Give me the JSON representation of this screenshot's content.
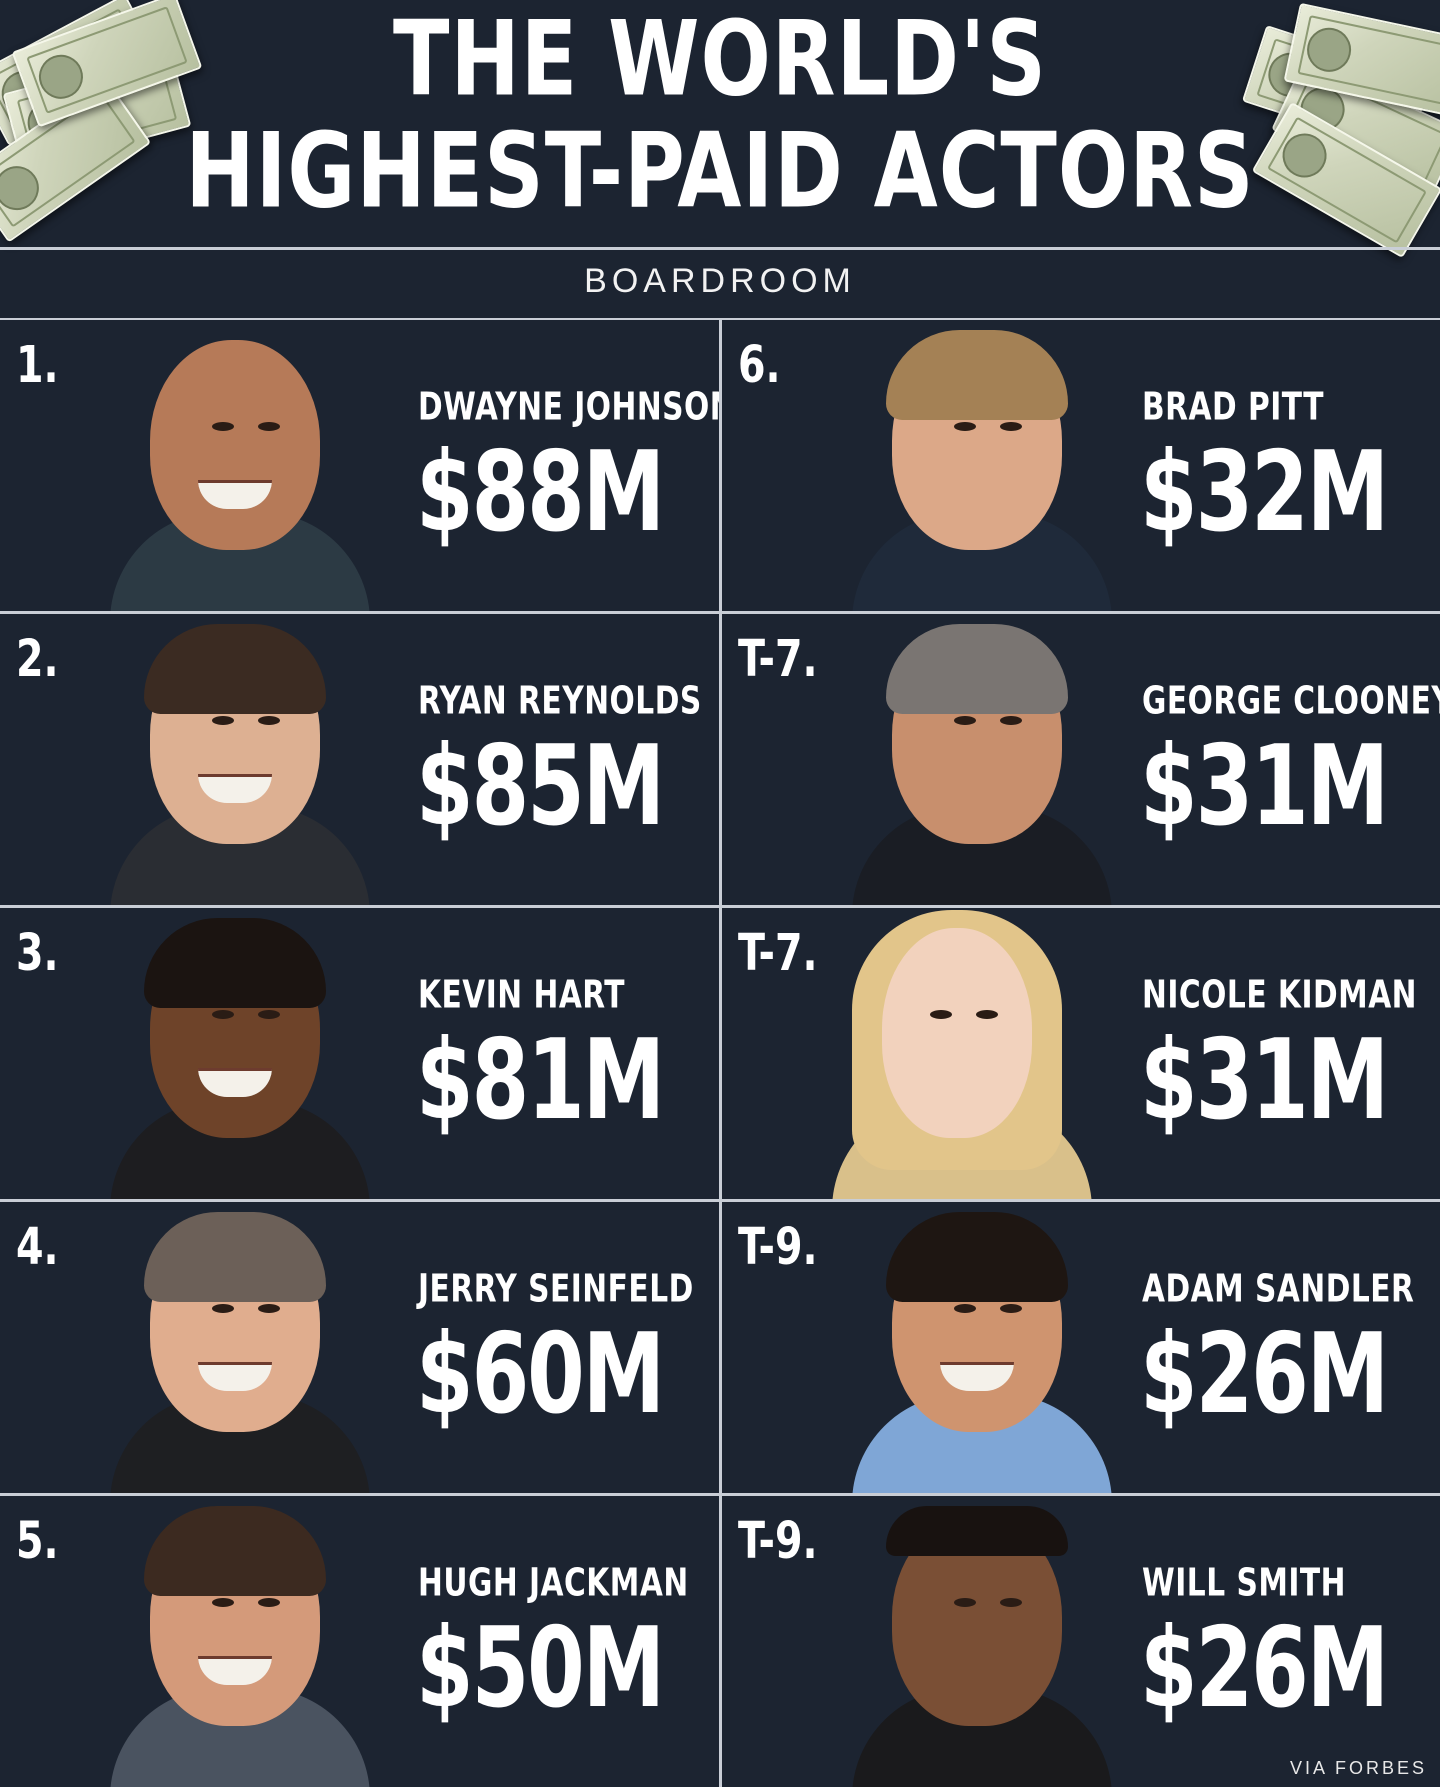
{
  "header": {
    "title_line1": "THE WORLD'S",
    "title_line2": "HIGHEST-PAID ACTORS",
    "brand": "BOARDROOM"
  },
  "actors_left": [
    {
      "rank": "1.",
      "name": "DWAYNE JOHNSON",
      "amount": "$88M"
    },
    {
      "rank": "2.",
      "name": "RYAN REYNOLDS",
      "amount": "$85M"
    },
    {
      "rank": "3.",
      "name": "KEVIN HART",
      "amount": "$81M"
    },
    {
      "rank": "4.",
      "name": "JERRY SEINFELD",
      "amount": "$60M"
    },
    {
      "rank": "5.",
      "name": "HUGH JACKMAN",
      "amount": "$50M"
    }
  ],
  "actors_right": [
    {
      "rank": "6.",
      "name": "BRAD PITT",
      "amount": "$32M"
    },
    {
      "rank": "T-7.",
      "name": "GEORGE CLOONEY",
      "amount": "$31M"
    },
    {
      "rank": "T-7.",
      "name": "NICOLE KIDMAN",
      "amount": "$31M"
    },
    {
      "rank": "T-9.",
      "name": "ADAM SANDLER",
      "amount": "$26M"
    },
    {
      "rank": "T-9.",
      "name": "WILL SMITH",
      "amount": "$26M"
    }
  ],
  "footer": {
    "source": "VIA FORBES"
  },
  "colors": {
    "background": "#1c2431",
    "text": "#ffffff",
    "divider": "#c9ced6"
  }
}
